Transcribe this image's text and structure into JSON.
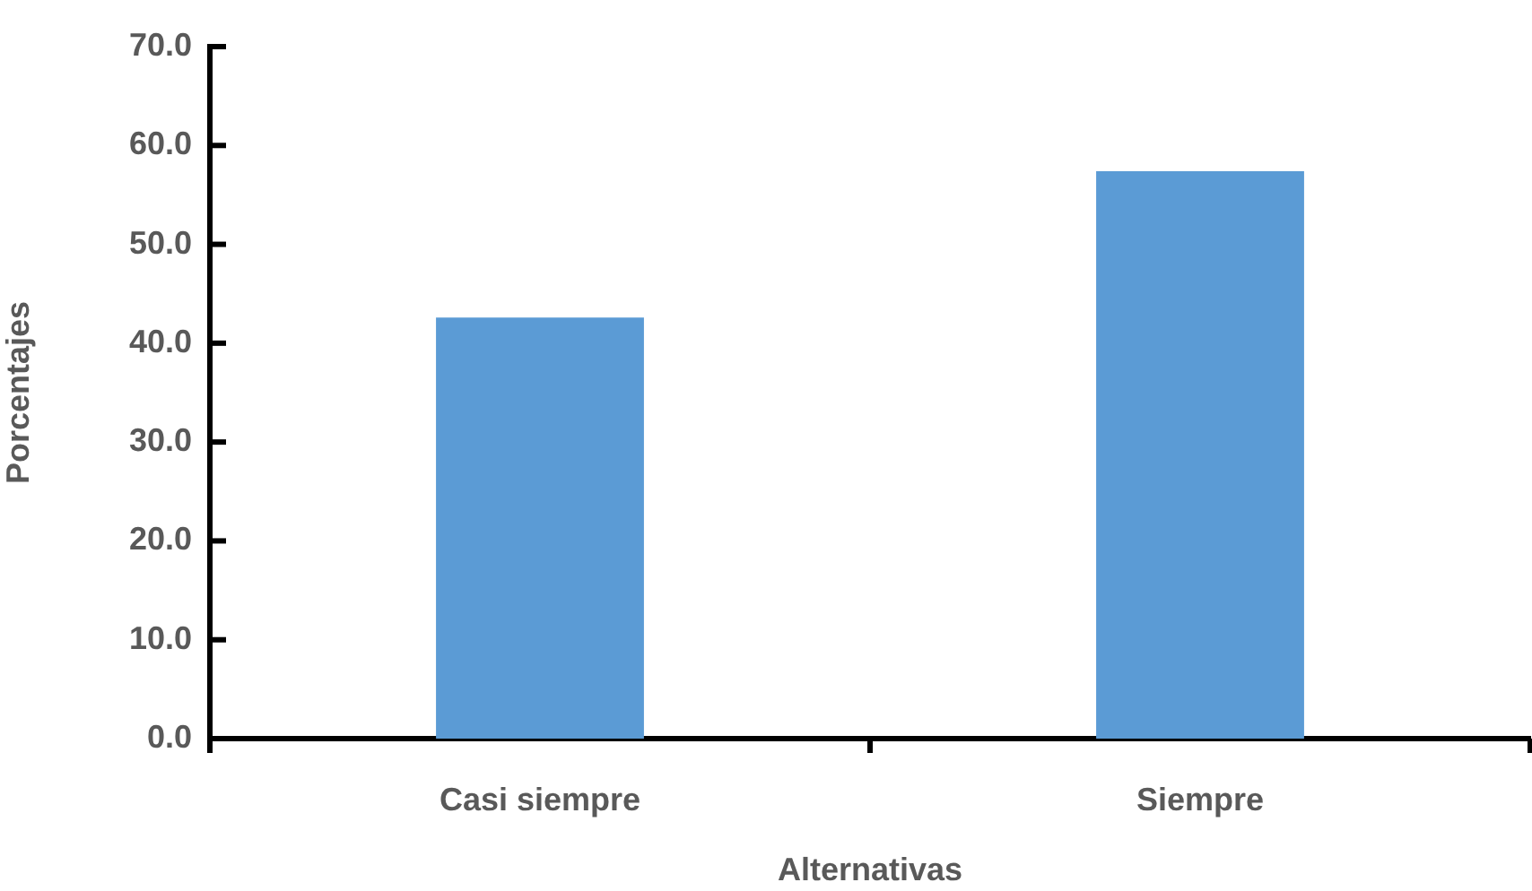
{
  "chart_data": {
    "type": "bar",
    "xlabel": "Alternativas",
    "ylabel": "Porcentajes",
    "categories": [
      "Casi siempre",
      "Siempre"
    ],
    "values": [
      42.6,
      57.4
    ],
    "color": "#5b9bd5",
    "ylim": [
      0,
      70
    ],
    "yticks": [
      {
        "value": 0,
        "label": "0.0"
      },
      {
        "value": 10,
        "label": "10.0"
      },
      {
        "value": 20,
        "label": "20.0"
      },
      {
        "value": 30,
        "label": "30.0"
      },
      {
        "value": 40,
        "label": "40.0"
      },
      {
        "value": 50,
        "label": "50.0"
      },
      {
        "value": 60,
        "label": "60.0"
      },
      {
        "value": 70,
        "label": "70.0"
      }
    ],
    "grid": false,
    "legend": false
  }
}
